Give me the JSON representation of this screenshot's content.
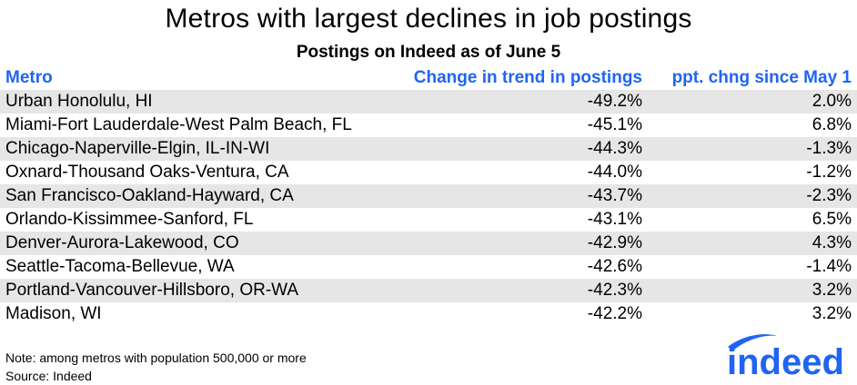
{
  "title": "Metros with largest declines in job postings",
  "subtitle": "Postings on Indeed as of June 5",
  "chart_data": {
    "type": "table",
    "columns": [
      "Metro",
      "Change in trend in postings",
      "ppt. chng since May 1"
    ],
    "rows": [
      [
        "Urban Honolulu, HI",
        "-49.2%",
        "2.0%"
      ],
      [
        "Miami-Fort Lauderdale-West Palm Beach, FL",
        "-45.1%",
        "6.8%"
      ],
      [
        "Chicago-Naperville-Elgin, IL-IN-WI",
        "-44.3%",
        "-1.3%"
      ],
      [
        "Oxnard-Thousand Oaks-Ventura, CA",
        "-44.0%",
        "-1.2%"
      ],
      [
        "San Francisco-Oakland-Hayward, CA",
        "-43.7%",
        "-2.3%"
      ],
      [
        "Orlando-Kissimmee-Sanford, FL",
        "-43.1%",
        "6.5%"
      ],
      [
        "Denver-Aurora-Lakewood, CO",
        "-42.9%",
        "4.3%"
      ],
      [
        "Seattle-Tacoma-Bellevue, WA",
        "-42.6%",
        "-1.4%"
      ],
      [
        "Portland-Vancouver-Hillsboro, OR-WA",
        "-42.3%",
        "3.2%"
      ],
      [
        "Madison, WI",
        "-42.2%",
        "3.2%"
      ]
    ]
  },
  "footer": {
    "note": "Note: among metros with population 500,000 or more",
    "source": "Source: Indeed"
  },
  "logo": {
    "text": "indeed",
    "icon": "indeed-logo",
    "color": "#2164f3"
  },
  "colors": {
    "header_text": "#2164f3",
    "row_shade": "#e6e6e6"
  }
}
